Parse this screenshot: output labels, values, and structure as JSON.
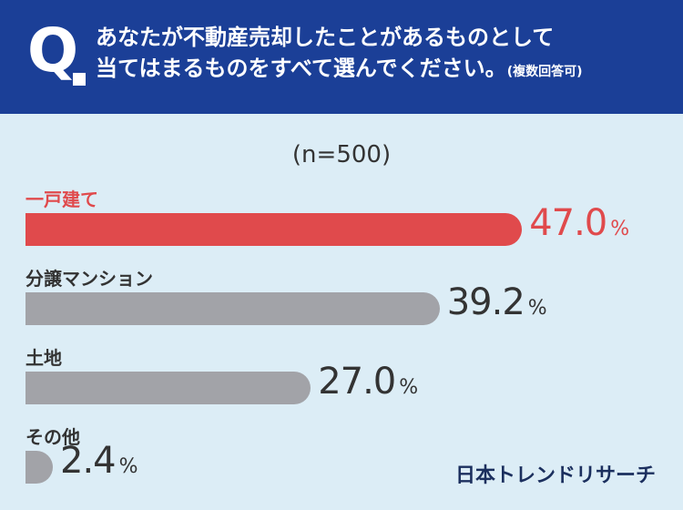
{
  "header": {
    "q_mark": "Q",
    "question_line1": "あなたが不動産売却したことがあるものとして",
    "question_line2": "当てはまるものをすべて選んでください。",
    "question_note": "(複数回答可)"
  },
  "chart_data": {
    "type": "bar",
    "orientation": "horizontal",
    "sample_label": "(n=500)",
    "categories": [
      "一戸建て",
      "分譲マンション",
      "土地",
      "その他"
    ],
    "values": [
      47.0,
      39.2,
      27.0,
      2.4
    ],
    "value_labels": [
      "47.0",
      "39.2",
      "27.0",
      "2.4"
    ],
    "unit": "%",
    "highlight_index": 0,
    "highlight_color": "#e04a4c",
    "bar_color": "#a2a3a8",
    "xlim": [
      0,
      100
    ]
  },
  "brand": "日本トレンドリサーチ",
  "colors": {
    "header_bg": "#1b3f97",
    "page_bg": "#dcedf6",
    "text": "#333333"
  }
}
